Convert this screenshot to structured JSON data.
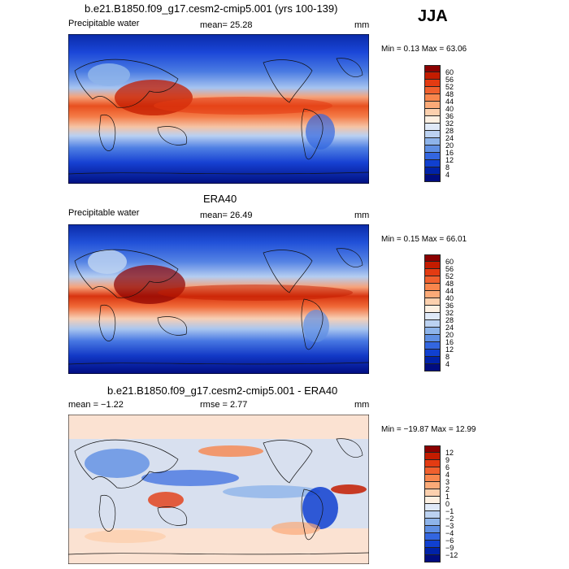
{
  "season": "JJA",
  "panels": [
    {
      "id": "model",
      "title": "b.e21.B1850.f09_g17.cesm2-cmip5.001 (yrs 100-139)",
      "left_label": "Precipitable water",
      "center_label": "mean=  25.28",
      "units": "mm",
      "minmax": "Min =   0.13 Max =  63.06",
      "colorbar": {
        "labels": [
          "60",
          "56",
          "52",
          "48",
          "44",
          "40",
          "36",
          "32",
          "28",
          "24",
          "20",
          "16",
          "12",
          "8",
          "4"
        ],
        "colors": [
          "#8b0000",
          "#c41c00",
          "#e33b12",
          "#f0602e",
          "#f8864d",
          "#fbaa78",
          "#fcd0ae",
          "#fdf0e2",
          "#dfe9f8",
          "#bcd2f1",
          "#8eb4ea",
          "#5f8fe3",
          "#3366e0",
          "#1040d0",
          "#0022a8",
          "#000c80"
        ]
      }
    },
    {
      "id": "obs",
      "title": "ERA40",
      "left_label": "Precipitable water",
      "center_label": "mean=  26.49",
      "units": "mm",
      "minmax": "Min =   0.15 Max =  66.01",
      "colorbar": {
        "labels": [
          "60",
          "56",
          "52",
          "48",
          "44",
          "40",
          "36",
          "32",
          "28",
          "24",
          "20",
          "16",
          "12",
          "8",
          "4"
        ],
        "colors": [
          "#8b0000",
          "#c41c00",
          "#e33b12",
          "#f0602e",
          "#f8864d",
          "#fbaa78",
          "#fcd0ae",
          "#fdf0e2",
          "#dfe9f8",
          "#bcd2f1",
          "#8eb4ea",
          "#5f8fe3",
          "#3366e0",
          "#1040d0",
          "#0022a8",
          "#000c80"
        ]
      }
    },
    {
      "id": "diff",
      "title": "b.e21.B1850.f09_g17.cesm2-cmip5.001 - ERA40",
      "left_label": "mean =  −1.22",
      "center_label": "rmse =   2.77",
      "units": "mm",
      "minmax": "Min = −19.87 Max =  12.99",
      "colorbar": {
        "labels": [
          "12",
          "9",
          "6",
          "4",
          "3",
          "2",
          "1",
          "0",
          "−1",
          "−2",
          "−3",
          "−4",
          "−6",
          "−9",
          "−12"
        ],
        "colors": [
          "#8b0000",
          "#c41c00",
          "#e33b12",
          "#f0602e",
          "#f8864d",
          "#fbaa78",
          "#fcd0ae",
          "#fdf0e2",
          "#dfe9f8",
          "#bcd2f1",
          "#8eb4ea",
          "#5f8fe3",
          "#3366e0",
          "#1040d0",
          "#0022a8",
          "#000c80"
        ]
      }
    }
  ]
}
